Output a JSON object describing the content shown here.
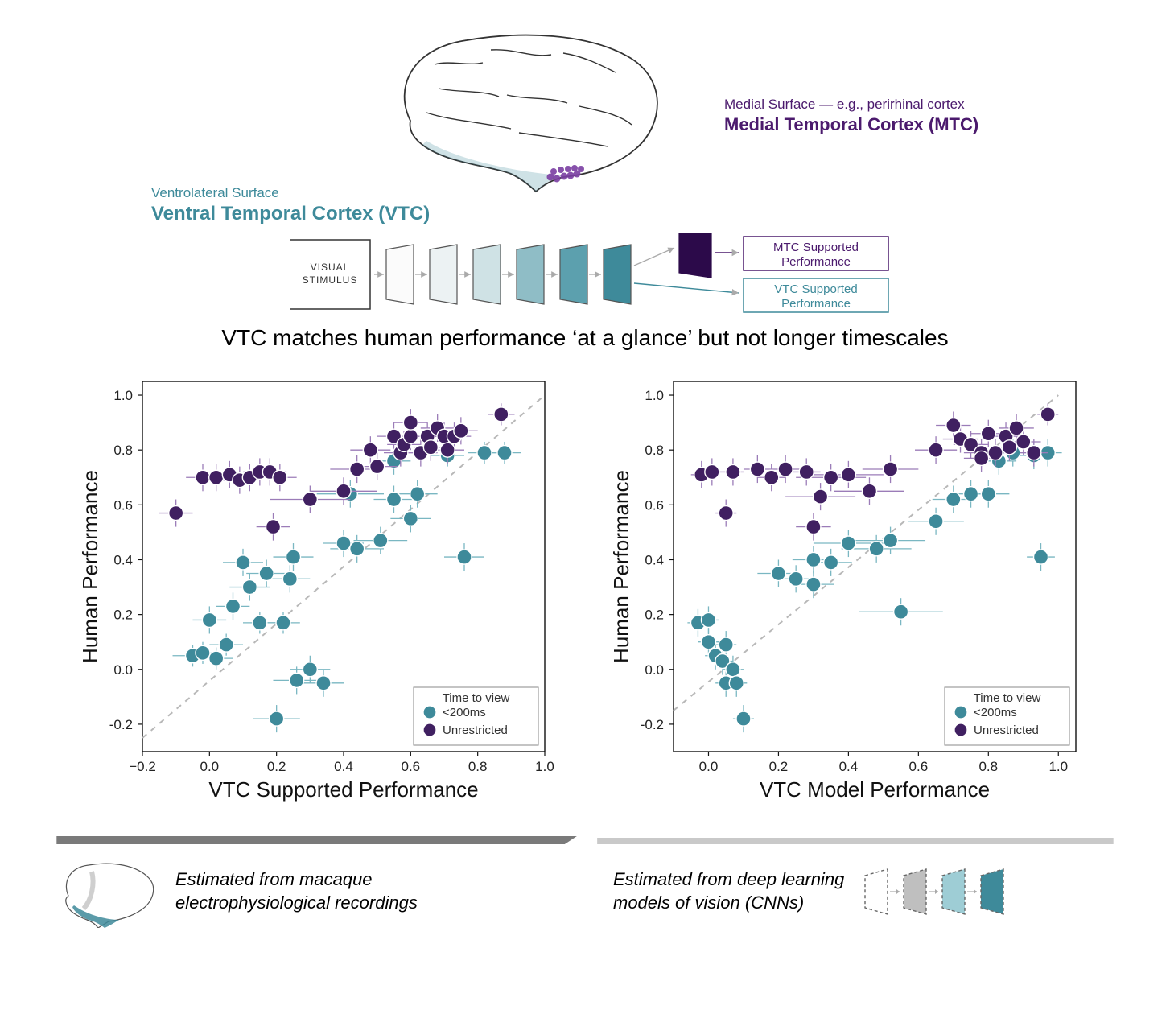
{
  "colors": {
    "vtc": "#3e8a9a",
    "mtc": "#4b1a6d",
    "mtc_light": "#7a3ea2",
    "teal_series": "#3e8a9a",
    "purple_series": "#402061",
    "grid": "#e0e0e0",
    "axis": "#111111",
    "dash": "#b8b8b8",
    "bg": "#ffffff",
    "footer_dark": "#7a7a7a",
    "footer_light": "#c9c9c9",
    "layer_colors": [
      "#fbfbfb",
      "#ecf2f3",
      "#cfe2e5",
      "#8fbdc6",
      "#5ca0ae",
      "#3e8a9a"
    ],
    "mtc_block": "#2c0a4a"
  },
  "labels": {
    "mtc_sub": "Medial Surface — e.g., perirhinal cortex",
    "mtc_title": "Medial Temporal Cortex (MTC)",
    "vtc_sub": "Ventrolateral Surface",
    "vtc_title": "Ventral Temporal Cortex (VTC)",
    "stimulus_box": "VISUAL\nSTIMULUS",
    "mtc_perf_box": "MTC Supported\nPerformance",
    "vtc_perf_box": "VTC Supported\nPerformance",
    "main_claim": "VTC matches human performance ‘at a glance’ but not longer timescales"
  },
  "left_chart": {
    "type": "scatter",
    "xlabel": "VTC Supported Performance",
    "ylabel": "Human Performance",
    "xlim": [
      -0.2,
      1.0
    ],
    "ylim": [
      -0.3,
      1.05
    ],
    "xticks": [
      -0.2,
      0.0,
      0.2,
      0.4,
      0.6,
      0.8,
      1.0
    ],
    "yticks": [
      -0.2,
      0.0,
      0.2,
      0.4,
      0.6,
      0.8,
      1.0
    ],
    "tick_labels_x": [
      "−0.2",
      "0.0",
      "0.2",
      "0.4",
      "0.6",
      "0.8",
      "1.0"
    ],
    "tick_labels_y": [
      "-0.2",
      "0.0",
      "0.2",
      "0.4",
      "0.6",
      "0.8",
      "1.0"
    ],
    "diag_line": {
      "x1": -0.25,
      "y1": -0.25,
      "x2": 1.0,
      "y2": 1.0
    },
    "legend": {
      "title": "Time to view",
      "items": [
        {
          "label": "<200ms",
          "color": "#3e8a9a"
        },
        {
          "label": "Unrestricted",
          "color": "#402061"
        }
      ]
    },
    "marker_r": 9,
    "errbar_color_teal": "#7ab7c2",
    "errbar_color_purple": "#9b7cb8",
    "axis_fontsize": 17,
    "label_fontsize": 26,
    "teal_points": [
      {
        "x": -0.05,
        "y": 0.05,
        "ex": 0.06,
        "ey": 0.04
      },
      {
        "x": -0.02,
        "y": 0.06,
        "ex": 0.05,
        "ey": 0.04
      },
      {
        "x": 0.0,
        "y": 0.18,
        "ex": 0.05,
        "ey": 0.05
      },
      {
        "x": 0.02,
        "y": 0.04,
        "ex": 0.05,
        "ey": 0.04
      },
      {
        "x": 0.05,
        "y": 0.09,
        "ex": 0.05,
        "ey": 0.04
      },
      {
        "x": 0.07,
        "y": 0.23,
        "ex": 0.05,
        "ey": 0.05
      },
      {
        "x": 0.1,
        "y": 0.39,
        "ex": 0.06,
        "ey": 0.05
      },
      {
        "x": 0.12,
        "y": 0.3,
        "ex": 0.06,
        "ey": 0.05
      },
      {
        "x": 0.15,
        "y": 0.17,
        "ex": 0.05,
        "ey": 0.04
      },
      {
        "x": 0.17,
        "y": 0.35,
        "ex": 0.06,
        "ey": 0.05
      },
      {
        "x": 0.2,
        "y": -0.18,
        "ex": 0.07,
        "ey": 0.05
      },
      {
        "x": 0.22,
        "y": 0.17,
        "ex": 0.05,
        "ey": 0.04
      },
      {
        "x": 0.24,
        "y": 0.33,
        "ex": 0.06,
        "ey": 0.05
      },
      {
        "x": 0.25,
        "y": 0.41,
        "ex": 0.06,
        "ey": 0.05
      },
      {
        "x": 0.26,
        "y": -0.04,
        "ex": 0.07,
        "ey": 0.05
      },
      {
        "x": 0.3,
        "y": 0.0,
        "ex": 0.06,
        "ey": 0.05
      },
      {
        "x": 0.34,
        "y": -0.05,
        "ex": 0.06,
        "ey": 0.05
      },
      {
        "x": 0.4,
        "y": 0.46,
        "ex": 0.06,
        "ey": 0.05
      },
      {
        "x": 0.42,
        "y": 0.64,
        "ex": 0.1,
        "ey": 0.05
      },
      {
        "x": 0.44,
        "y": 0.44,
        "ex": 0.08,
        "ey": 0.05
      },
      {
        "x": 0.51,
        "y": 0.47,
        "ex": 0.08,
        "ey": 0.05
      },
      {
        "x": 0.55,
        "y": 0.62,
        "ex": 0.06,
        "ey": 0.05
      },
      {
        "x": 0.55,
        "y": 0.76,
        "ex": 0.05,
        "ey": 0.05
      },
      {
        "x": 0.6,
        "y": 0.55,
        "ex": 0.06,
        "ey": 0.05
      },
      {
        "x": 0.62,
        "y": 0.64,
        "ex": 0.06,
        "ey": 0.05
      },
      {
        "x": 0.71,
        "y": 0.78,
        "ex": 0.05,
        "ey": 0.04
      },
      {
        "x": 0.76,
        "y": 0.41,
        "ex": 0.06,
        "ey": 0.05
      },
      {
        "x": 0.82,
        "y": 0.79,
        "ex": 0.05,
        "ey": 0.04
      },
      {
        "x": 0.88,
        "y": 0.79,
        "ex": 0.05,
        "ey": 0.04
      }
    ],
    "purple_points": [
      {
        "x": -0.1,
        "y": 0.57,
        "ex": 0.05,
        "ey": 0.05
      },
      {
        "x": -0.02,
        "y": 0.7,
        "ex": 0.05,
        "ey": 0.05
      },
      {
        "x": 0.02,
        "y": 0.7,
        "ex": 0.05,
        "ey": 0.05
      },
      {
        "x": 0.06,
        "y": 0.71,
        "ex": 0.05,
        "ey": 0.05
      },
      {
        "x": 0.09,
        "y": 0.69,
        "ex": 0.05,
        "ey": 0.05
      },
      {
        "x": 0.12,
        "y": 0.7,
        "ex": 0.05,
        "ey": 0.05
      },
      {
        "x": 0.15,
        "y": 0.72,
        "ex": 0.05,
        "ey": 0.05
      },
      {
        "x": 0.18,
        "y": 0.72,
        "ex": 0.05,
        "ey": 0.05
      },
      {
        "x": 0.21,
        "y": 0.7,
        "ex": 0.05,
        "ey": 0.05
      },
      {
        "x": 0.19,
        "y": 0.52,
        "ex": 0.05,
        "ey": 0.05
      },
      {
        "x": 0.3,
        "y": 0.62,
        "ex": 0.12,
        "ey": 0.05
      },
      {
        "x": 0.4,
        "y": 0.65,
        "ex": 0.1,
        "ey": 0.05
      },
      {
        "x": 0.44,
        "y": 0.73,
        "ex": 0.08,
        "ey": 0.05
      },
      {
        "x": 0.48,
        "y": 0.8,
        "ex": 0.06,
        "ey": 0.05
      },
      {
        "x": 0.5,
        "y": 0.74,
        "ex": 0.06,
        "ey": 0.05
      },
      {
        "x": 0.55,
        "y": 0.85,
        "ex": 0.05,
        "ey": 0.05
      },
      {
        "x": 0.57,
        "y": 0.79,
        "ex": 0.05,
        "ey": 0.05
      },
      {
        "x": 0.58,
        "y": 0.82,
        "ex": 0.05,
        "ey": 0.05
      },
      {
        "x": 0.6,
        "y": 0.85,
        "ex": 0.05,
        "ey": 0.05
      },
      {
        "x": 0.6,
        "y": 0.9,
        "ex": 0.05,
        "ey": 0.05
      },
      {
        "x": 0.63,
        "y": 0.79,
        "ex": 0.05,
        "ey": 0.05
      },
      {
        "x": 0.65,
        "y": 0.85,
        "ex": 0.05,
        "ey": 0.05
      },
      {
        "x": 0.66,
        "y": 0.81,
        "ex": 0.05,
        "ey": 0.05
      },
      {
        "x": 0.68,
        "y": 0.88,
        "ex": 0.05,
        "ey": 0.05
      },
      {
        "x": 0.7,
        "y": 0.85,
        "ex": 0.05,
        "ey": 0.05
      },
      {
        "x": 0.71,
        "y": 0.8,
        "ex": 0.05,
        "ey": 0.05
      },
      {
        "x": 0.73,
        "y": 0.85,
        "ex": 0.05,
        "ey": 0.05
      },
      {
        "x": 0.75,
        "y": 0.87,
        "ex": 0.05,
        "ey": 0.05
      },
      {
        "x": 0.87,
        "y": 0.93,
        "ex": 0.04,
        "ey": 0.04
      }
    ]
  },
  "right_chart": {
    "type": "scatter",
    "xlabel": "VTC Model Performance",
    "ylabel": "Human Performance",
    "xlim": [
      -0.1,
      1.05
    ],
    "ylim": [
      -0.3,
      1.05
    ],
    "xticks": [
      0.0,
      0.2,
      0.4,
      0.6,
      0.8,
      1.0
    ],
    "yticks": [
      -0.2,
      0.0,
      0.2,
      0.4,
      0.6,
      0.8,
      1.0
    ],
    "tick_labels_x": [
      "0.0",
      "0.2",
      "0.4",
      "0.6",
      "0.8",
      "1.0"
    ],
    "tick_labels_y": [
      "-0.2",
      "0.0",
      "0.2",
      "0.4",
      "0.6",
      "0.8",
      "1.0"
    ],
    "diag_line": {
      "x1": -0.15,
      "y1": -0.15,
      "x2": 1.0,
      "y2": 1.0
    },
    "legend": {
      "title": "Time to view",
      "items": [
        {
          "label": "<200ms",
          "color": "#3e8a9a"
        },
        {
          "label": "Unrestricted",
          "color": "#402061"
        }
      ]
    },
    "marker_r": 9,
    "teal_points": [
      {
        "x": -0.03,
        "y": 0.17,
        "ex": 0.03,
        "ey": 0.05
      },
      {
        "x": 0.0,
        "y": 0.18,
        "ex": 0.03,
        "ey": 0.05
      },
      {
        "x": 0.0,
        "y": 0.1,
        "ex": 0.03,
        "ey": 0.05
      },
      {
        "x": 0.02,
        "y": 0.05,
        "ex": 0.03,
        "ey": 0.05
      },
      {
        "x": 0.04,
        "y": 0.03,
        "ex": 0.03,
        "ey": 0.05
      },
      {
        "x": 0.05,
        "y": 0.09,
        "ex": 0.03,
        "ey": 0.05
      },
      {
        "x": 0.05,
        "y": -0.05,
        "ex": 0.03,
        "ey": 0.05
      },
      {
        "x": 0.07,
        "y": 0.0,
        "ex": 0.03,
        "ey": 0.05
      },
      {
        "x": 0.08,
        "y": -0.05,
        "ex": 0.03,
        "ey": 0.05
      },
      {
        "x": 0.1,
        "y": -0.18,
        "ex": 0.03,
        "ey": 0.05
      },
      {
        "x": 0.2,
        "y": 0.35,
        "ex": 0.06,
        "ey": 0.05
      },
      {
        "x": 0.25,
        "y": 0.33,
        "ex": 0.06,
        "ey": 0.05
      },
      {
        "x": 0.3,
        "y": 0.31,
        "ex": 0.06,
        "ey": 0.05
      },
      {
        "x": 0.3,
        "y": 0.4,
        "ex": 0.06,
        "ey": 0.05
      },
      {
        "x": 0.35,
        "y": 0.39,
        "ex": 0.06,
        "ey": 0.05
      },
      {
        "x": 0.4,
        "y": 0.46,
        "ex": 0.1,
        "ey": 0.05
      },
      {
        "x": 0.48,
        "y": 0.44,
        "ex": 0.1,
        "ey": 0.05
      },
      {
        "x": 0.52,
        "y": 0.47,
        "ex": 0.1,
        "ey": 0.05
      },
      {
        "x": 0.55,
        "y": 0.21,
        "ex": 0.12,
        "ey": 0.05
      },
      {
        "x": 0.65,
        "y": 0.54,
        "ex": 0.08,
        "ey": 0.05
      },
      {
        "x": 0.7,
        "y": 0.62,
        "ex": 0.06,
        "ey": 0.05
      },
      {
        "x": 0.75,
        "y": 0.64,
        "ex": 0.06,
        "ey": 0.05
      },
      {
        "x": 0.8,
        "y": 0.64,
        "ex": 0.06,
        "ey": 0.05
      },
      {
        "x": 0.83,
        "y": 0.76,
        "ex": 0.05,
        "ey": 0.05
      },
      {
        "x": 0.87,
        "y": 0.79,
        "ex": 0.05,
        "ey": 0.05
      },
      {
        "x": 0.93,
        "y": 0.78,
        "ex": 0.04,
        "ey": 0.05
      },
      {
        "x": 0.97,
        "y": 0.79,
        "ex": 0.04,
        "ey": 0.05
      },
      {
        "x": 0.95,
        "y": 0.41,
        "ex": 0.04,
        "ey": 0.05
      }
    ],
    "purple_points": [
      {
        "x": -0.02,
        "y": 0.71,
        "ex": 0.03,
        "ey": 0.05
      },
      {
        "x": 0.01,
        "y": 0.72,
        "ex": 0.03,
        "ey": 0.05
      },
      {
        "x": 0.05,
        "y": 0.57,
        "ex": 0.03,
        "ey": 0.05
      },
      {
        "x": 0.07,
        "y": 0.72,
        "ex": 0.03,
        "ey": 0.05
      },
      {
        "x": 0.14,
        "y": 0.73,
        "ex": 0.04,
        "ey": 0.05
      },
      {
        "x": 0.18,
        "y": 0.7,
        "ex": 0.04,
        "ey": 0.05
      },
      {
        "x": 0.22,
        "y": 0.73,
        "ex": 0.04,
        "ey": 0.05
      },
      {
        "x": 0.28,
        "y": 0.72,
        "ex": 0.04,
        "ey": 0.05
      },
      {
        "x": 0.3,
        "y": 0.52,
        "ex": 0.05,
        "ey": 0.05
      },
      {
        "x": 0.32,
        "y": 0.63,
        "ex": 0.1,
        "ey": 0.05
      },
      {
        "x": 0.35,
        "y": 0.7,
        "ex": 0.1,
        "ey": 0.05
      },
      {
        "x": 0.4,
        "y": 0.71,
        "ex": 0.1,
        "ey": 0.05
      },
      {
        "x": 0.46,
        "y": 0.65,
        "ex": 0.1,
        "ey": 0.05
      },
      {
        "x": 0.52,
        "y": 0.73,
        "ex": 0.08,
        "ey": 0.05
      },
      {
        "x": 0.65,
        "y": 0.8,
        "ex": 0.06,
        "ey": 0.05
      },
      {
        "x": 0.7,
        "y": 0.89,
        "ex": 0.05,
        "ey": 0.05
      },
      {
        "x": 0.72,
        "y": 0.84,
        "ex": 0.05,
        "ey": 0.05
      },
      {
        "x": 0.75,
        "y": 0.82,
        "ex": 0.05,
        "ey": 0.05
      },
      {
        "x": 0.78,
        "y": 0.79,
        "ex": 0.05,
        "ey": 0.05
      },
      {
        "x": 0.78,
        "y": 0.77,
        "ex": 0.05,
        "ey": 0.05
      },
      {
        "x": 0.8,
        "y": 0.86,
        "ex": 0.05,
        "ey": 0.05
      },
      {
        "x": 0.82,
        "y": 0.79,
        "ex": 0.05,
        "ey": 0.05
      },
      {
        "x": 0.85,
        "y": 0.85,
        "ex": 0.05,
        "ey": 0.05
      },
      {
        "x": 0.86,
        "y": 0.81,
        "ex": 0.05,
        "ey": 0.05
      },
      {
        "x": 0.88,
        "y": 0.88,
        "ex": 0.05,
        "ey": 0.05
      },
      {
        "x": 0.9,
        "y": 0.83,
        "ex": 0.05,
        "ey": 0.05
      },
      {
        "x": 0.93,
        "y": 0.79,
        "ex": 0.04,
        "ey": 0.05
      },
      {
        "x": 0.97,
        "y": 0.93,
        "ex": 0.03,
        "ey": 0.04
      }
    ]
  },
  "footer": {
    "left_text": "Estimated from macaque\nelectrophysiological recordings",
    "right_text": "Estimated from deep learning\nmodels of vision (CNNs)"
  }
}
